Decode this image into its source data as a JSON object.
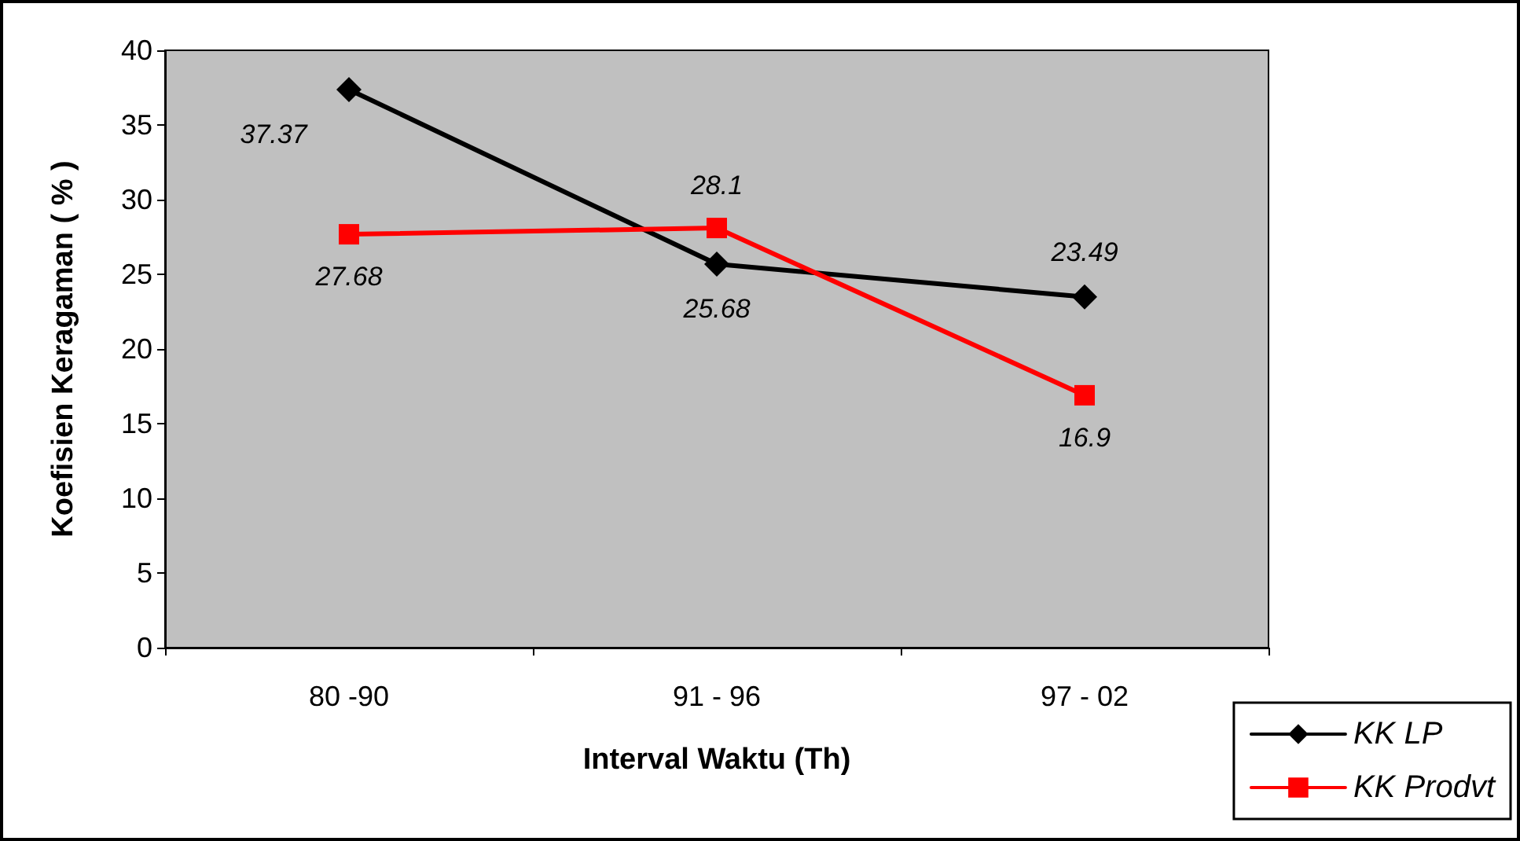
{
  "chart_data": {
    "type": "line",
    "xlabel": "Interval Waktu (Th)",
    "ylabel": "Koefisien Keragaman ( % )",
    "categories": [
      "80 -90",
      "91 - 96",
      "97 - 02"
    ],
    "series": [
      {
        "name": "KK LP",
        "color": "#000000",
        "marker": "diamond",
        "values": [
          37.37,
          25.68,
          23.49
        ]
      },
      {
        "name": "KK Prodvt",
        "color": "#ff0000",
        "marker": "square",
        "values": [
          27.68,
          28.1,
          16.9
        ]
      }
    ],
    "ylim": [
      0,
      40
    ],
    "yticks": [
      0,
      5,
      10,
      15,
      20,
      25,
      30,
      35,
      40
    ],
    "grid": false,
    "legend": "bottom right",
    "data_labels": true,
    "line_style": "solid"
  }
}
